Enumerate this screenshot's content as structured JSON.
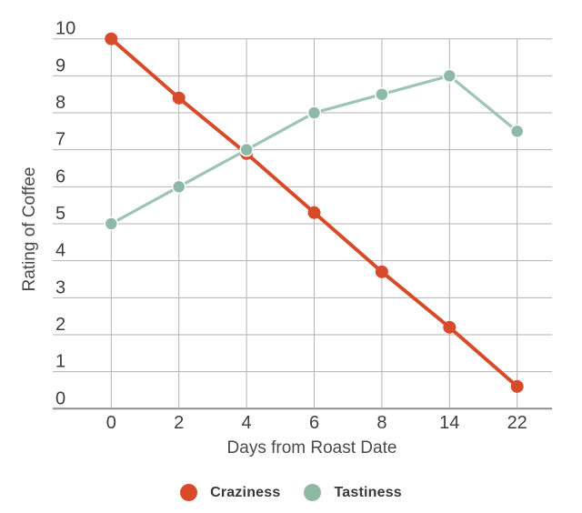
{
  "chart_data": {
    "type": "line",
    "title": "",
    "xlabel": "Days from Roast Date",
    "ylabel": "Rating of Coffee",
    "x_scale": "categorical",
    "x_categories": [
      "0",
      "2",
      "4",
      "6",
      "8",
      "14",
      "22"
    ],
    "series": [
      {
        "name": "Craziness",
        "color": "#D74B2A",
        "values": [
          10,
          8.4,
          6.9,
          5.3,
          3.7,
          2.2,
          0.6
        ]
      },
      {
        "name": "Tastiness",
        "color": "#8DB9A6",
        "line_color": "#9EC4B3",
        "values": [
          5,
          6,
          7,
          8,
          8.5,
          9,
          7.5
        ]
      }
    ],
    "y_ticks": [
      0,
      1,
      2,
      3,
      4,
      5,
      6,
      7,
      8,
      9,
      10
    ],
    "ylim": [
      0,
      10
    ],
    "grid": true,
    "marker": "circle",
    "legend_position": "bottom"
  }
}
